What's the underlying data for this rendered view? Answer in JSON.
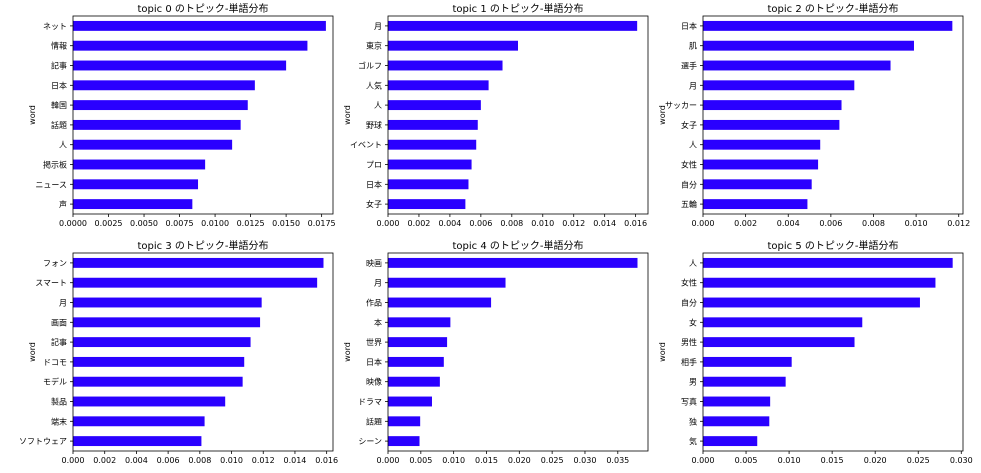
{
  "colors": {
    "bar": "#2a00ff",
    "axis": "#000000",
    "background": "#ffffff"
  },
  "chart_data": [
    {
      "type": "bar",
      "orientation": "horizontal",
      "title": "topic 0 のトピック-単語分布",
      "ylabel": "word",
      "categories": [
        "ネット",
        "情報",
        "記事",
        "日本",
        "韓国",
        "話題",
        "人",
        "掲示板",
        "ニュース",
        "声"
      ],
      "values": [
        0.0178,
        0.0165,
        0.015,
        0.0128,
        0.0123,
        0.0118,
        0.0112,
        0.0093,
        0.0088,
        0.0084
      ],
      "xlim": [
        0.0,
        0.0183
      ],
      "xticks": [
        0,
        0.0025,
        0.005,
        0.0075,
        0.01,
        0.0125,
        0.015,
        0.0175
      ],
      "xtick_labels": [
        "0.0000",
        "0.0025",
        "0.0050",
        "0.0075",
        "0.0100",
        "0.0125",
        "0.0150",
        "0.0175"
      ]
    },
    {
      "type": "bar",
      "orientation": "horizontal",
      "title": "topic 1 のトピック-単語分布",
      "ylabel": "word",
      "categories": [
        "月",
        "東京",
        "ゴルフ",
        "人気",
        "人",
        "野球",
        "イベント",
        "プロ",
        "日本",
        "女子"
      ],
      "values": [
        0.0161,
        0.0084,
        0.0074,
        0.0065,
        0.006,
        0.0058,
        0.0057,
        0.0054,
        0.0052,
        0.005
      ],
      "xlim": [
        0.0,
        0.0168
      ],
      "xticks": [
        0,
        0.002,
        0.004,
        0.006,
        0.008,
        0.01,
        0.012,
        0.014,
        0.016
      ],
      "xtick_labels": [
        "0.000",
        "0.002",
        "0.004",
        "0.006",
        "0.008",
        "0.010",
        "0.012",
        "0.014",
        "0.016"
      ]
    },
    {
      "type": "bar",
      "orientation": "horizontal",
      "title": "topic 2 のトピック-単語分布",
      "ylabel": "word",
      "categories": [
        "日本",
        "肌",
        "選手",
        "月",
        "サッカー",
        "女子",
        "人",
        "女性",
        "自分",
        "五輪"
      ],
      "values": [
        0.0117,
        0.0099,
        0.0088,
        0.0071,
        0.0065,
        0.0064,
        0.0055,
        0.0054,
        0.0051,
        0.0049
      ],
      "xlim": [
        0.0,
        0.0122
      ],
      "xticks": [
        0,
        0.002,
        0.004,
        0.006,
        0.008,
        0.01,
        0.012
      ],
      "xtick_labels": [
        "0.000",
        "0.002",
        "0.004",
        "0.006",
        "0.008",
        "0.010",
        "0.012"
      ]
    },
    {
      "type": "bar",
      "orientation": "horizontal",
      "title": "topic 3 のトピック-単語分布",
      "ylabel": "word",
      "categories": [
        "フォン",
        "スマート",
        "月",
        "画面",
        "記事",
        "ドコモ",
        "モデル",
        "製品",
        "端末",
        "ソフトウェア"
      ],
      "values": [
        0.0158,
        0.0154,
        0.0119,
        0.0118,
        0.0112,
        0.0108,
        0.0107,
        0.0096,
        0.0083,
        0.0081
      ],
      "xlim": [
        0.0,
        0.0164
      ],
      "xticks": [
        0,
        0.002,
        0.004,
        0.006,
        0.008,
        0.01,
        0.012,
        0.014,
        0.016
      ],
      "xtick_labels": [
        "0.000",
        "0.002",
        "0.004",
        "0.006",
        "0.008",
        "0.010",
        "0.012",
        "0.014",
        "0.016"
      ]
    },
    {
      "type": "bar",
      "orientation": "horizontal",
      "title": "topic 4 のトピック-単語分布",
      "ylabel": "word",
      "categories": [
        "映画",
        "月",
        "作品",
        "本",
        "世界",
        "日本",
        "映像",
        "ドラマ",
        "話題",
        "シーン"
      ],
      "values": [
        0.038,
        0.0179,
        0.0157,
        0.0095,
        0.009,
        0.0085,
        0.0079,
        0.0067,
        0.0049,
        0.0048
      ],
      "xlim": [
        0.0,
        0.0396
      ],
      "xticks": [
        0,
        0.005,
        0.01,
        0.015,
        0.02,
        0.025,
        0.03,
        0.035
      ],
      "xtick_labels": [
        "0.000",
        "0.005",
        "0.010",
        "0.015",
        "0.020",
        "0.025",
        "0.030",
        "0.035"
      ]
    },
    {
      "type": "bar",
      "orientation": "horizontal",
      "title": "topic 5 のトピック-単語分布",
      "ylabel": "word",
      "categories": [
        "人",
        "女性",
        "自分",
        "女",
        "男性",
        "相手",
        "男",
        "写真",
        "独",
        "気"
      ],
      "values": [
        0.029,
        0.027,
        0.0252,
        0.0185,
        0.0176,
        0.0103,
        0.0096,
        0.0078,
        0.0077,
        0.0063
      ],
      "xlim": [
        0.0,
        0.0302
      ],
      "xticks": [
        0,
        0.005,
        0.01,
        0.015,
        0.02,
        0.025,
        0.03
      ],
      "xtick_labels": [
        "0.000",
        "0.005",
        "0.010",
        "0.015",
        "0.020",
        "0.025",
        "0.030"
      ]
    }
  ]
}
